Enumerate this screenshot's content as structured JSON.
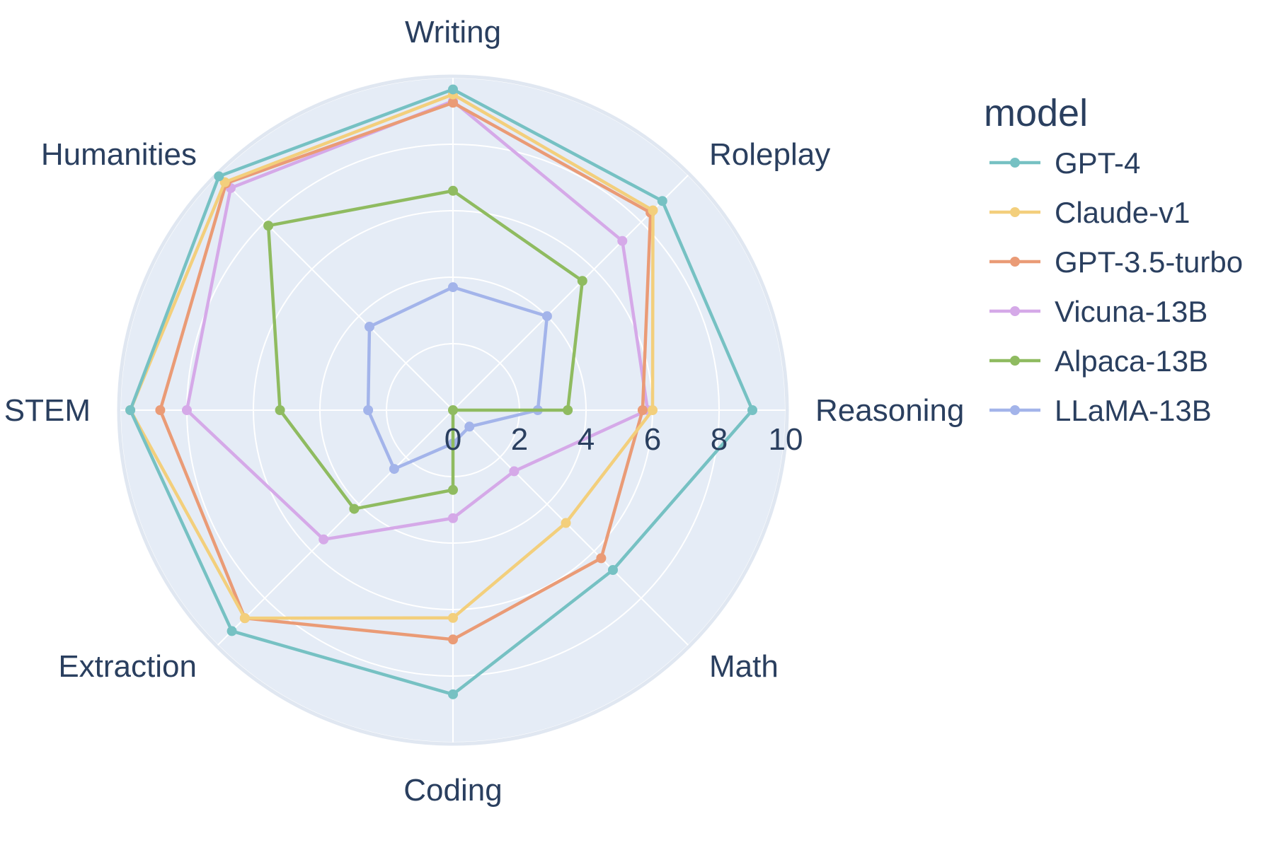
{
  "chart_data": {
    "type": "radar",
    "axes": [
      "Writing",
      "Roleplay",
      "Reasoning",
      "Math",
      "Coding",
      "Extraction",
      "STEM",
      "Humanities"
    ],
    "radial_ticks": [
      "0",
      "2",
      "4",
      "6",
      "8",
      "10"
    ],
    "radial_range": [
      0,
      10
    ],
    "legend_title": "model",
    "legend_position": "right",
    "background_color": "#e5ecf6",
    "grid_color": "#ffffff",
    "series": [
      {
        "name": "GPT-4",
        "color": "#76c1c3",
        "values": [
          9.65,
          8.9,
          9.0,
          6.8,
          8.55,
          9.4,
          9.7,
          9.95
        ]
      },
      {
        "name": "Claude-v1",
        "color": "#f3cf7c",
        "values": [
          9.5,
          8.5,
          6.0,
          4.8,
          6.25,
          8.85,
          9.7,
          9.7
        ]
      },
      {
        "name": "GPT-3.5-turbo",
        "color": "#ea9b76",
        "values": [
          9.25,
          8.4,
          5.7,
          6.3,
          6.9,
          8.85,
          8.8,
          9.65
        ]
      },
      {
        "name": "Vicuna-13B",
        "color": "#d5a9e8",
        "values": [
          9.3,
          7.2,
          5.85,
          2.6,
          3.25,
          5.5,
          8.0,
          9.45
        ]
      },
      {
        "name": "Alpaca-13B",
        "color": "#8fbb60",
        "values": [
          6.6,
          5.5,
          3.45,
          0.0,
          2.4,
          4.2,
          5.2,
          7.85
        ]
      },
      {
        "name": "LLaMA-13B",
        "color": "#a3b4ea",
        "values": [
          3.7,
          4.0,
          2.55,
          0.7,
          1.0,
          2.5,
          2.55,
          3.55
        ]
      }
    ]
  }
}
